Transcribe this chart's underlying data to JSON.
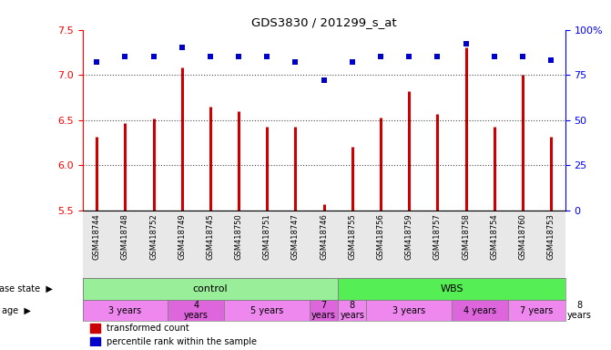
{
  "title": "GDS3830 / 201299_s_at",
  "samples": [
    "GSM418744",
    "GSM418748",
    "GSM418752",
    "GSM418749",
    "GSM418745",
    "GSM418750",
    "GSM418751",
    "GSM418747",
    "GSM418746",
    "GSM418755",
    "GSM418756",
    "GSM418759",
    "GSM418757",
    "GSM418758",
    "GSM418754",
    "GSM418760",
    "GSM418753"
  ],
  "transformed_count": [
    6.32,
    6.47,
    6.52,
    7.08,
    6.65,
    6.6,
    6.43,
    6.43,
    5.57,
    6.2,
    6.53,
    6.82,
    6.57,
    7.3,
    6.43,
    7.0,
    6.32
  ],
  "percentile_rank": [
    82,
    85,
    85,
    90,
    85,
    85,
    85,
    82,
    72,
    82,
    85,
    85,
    85,
    92,
    85,
    85,
    83
  ],
  "ylim_left": [
    5.5,
    7.5
  ],
  "ylim_right": [
    0,
    100
  ],
  "yticks_left": [
    5.5,
    6.0,
    6.5,
    7.0,
    7.5
  ],
  "yticks_right": [
    0,
    25,
    50,
    75,
    100
  ],
  "bar_color": "#cc0000",
  "dot_color": "#0000cc",
  "disease_groups": [
    {
      "label": "control",
      "start": 0,
      "end": 9,
      "color": "#99ee99"
    },
    {
      "label": "WBS",
      "start": 9,
      "end": 17,
      "color": "#55ee55"
    }
  ],
  "age_groups": [
    {
      "label": "3 years",
      "start": 0,
      "end": 3,
      "color": "#ee88ee"
    },
    {
      "label": "4\nyears",
      "start": 3,
      "end": 5,
      "color": "#dd66dd"
    },
    {
      "label": "5 years",
      "start": 5,
      "end": 8,
      "color": "#ee88ee"
    },
    {
      "label": "7\nyears",
      "start": 8,
      "end": 9,
      "color": "#dd66dd"
    },
    {
      "label": "8\nyears",
      "start": 9,
      "end": 10,
      "color": "#ee88ee"
    },
    {
      "label": "3 years",
      "start": 10,
      "end": 13,
      "color": "#ee88ee"
    },
    {
      "label": "4 years",
      "start": 13,
      "end": 15,
      "color": "#dd66dd"
    },
    {
      "label": "7 years",
      "start": 15,
      "end": 17,
      "color": "#ee88ee"
    },
    {
      "label": "8\nyears",
      "start": 17,
      "end": 18,
      "color": "#dd66dd"
    }
  ],
  "legend_items": [
    {
      "label": "transformed count",
      "color": "#cc0000"
    },
    {
      "label": "percentile rank within the sample",
      "color": "#0000cc"
    }
  ],
  "grid_lines": [
    6.0,
    6.5,
    7.0
  ],
  "bg_color": "#ffffff",
  "label_fontsize": 7,
  "tick_fontsize": 8
}
